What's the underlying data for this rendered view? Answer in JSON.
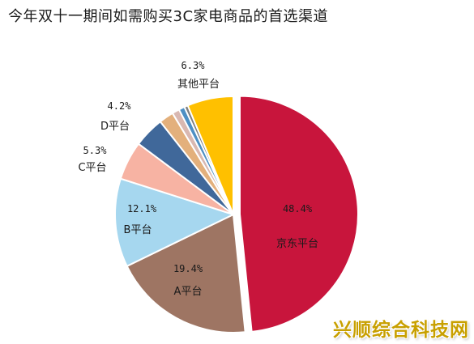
{
  "title": "今年双十一期间如需购买3C家电商品的首选渠道",
  "watermark": "兴顺综合科技网",
  "chart_data": {
    "type": "pie",
    "title": "今年双十一期间如需购买3C家电商品的首选渠道",
    "slices": [
      {
        "label": "京东平台",
        "value": 48.4,
        "value_label": "48.4%",
        "color": "#c8153c",
        "exploded": true
      },
      {
        "label": "A平台",
        "value": 19.4,
        "value_label": "19.4%",
        "color": "#9e7563"
      },
      {
        "label": "B平台",
        "value": 12.1,
        "value_label": "12.1%",
        "color": "#a6d7ef"
      },
      {
        "label": "C平台",
        "value": 5.3,
        "value_label": "5.3%",
        "color": "#f7b3a3"
      },
      {
        "label": "D平台",
        "value": 4.2,
        "value_label": "4.2%",
        "color": "#40689a"
      },
      {
        "label": "",
        "value": 2.0,
        "value_label": "",
        "color": "#e3b07c"
      },
      {
        "label": "",
        "value": 1.0,
        "value_label": "",
        "color": "#d9b8b1"
      },
      {
        "label": "",
        "value": 0.8,
        "value_label": "",
        "color": "#4d8fc4"
      },
      {
        "label": "",
        "value": 0.5,
        "value_label": "",
        "color": "#7f7f7f"
      },
      {
        "label": "其他平台",
        "value": 6.3,
        "value_label": "6.3%",
        "color": "#ffc000"
      }
    ]
  }
}
